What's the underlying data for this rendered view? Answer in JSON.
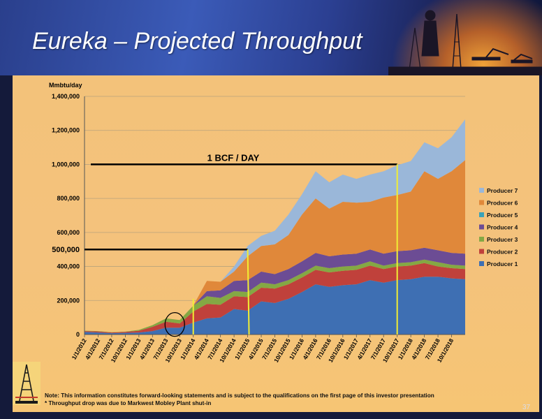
{
  "slide": {
    "title": "Eureka – Projected Throughput",
    "page_number": "37",
    "note_1": "Note:  This information constitutes forward-looking statements and is subject to the qualifications on the first page of this investor presentation",
    "note_2": "* Throughput drop was  due to Markwest Mobley Plant shut-in"
  },
  "colors": {
    "header_bg": "#2f4aa0",
    "panel_bg": "#f4c27c",
    "Producer 1": "#3e6fb3",
    "Producer 2": "#c0413b",
    "Producer 3": "#84a844",
    "Producer 4": "#6c4c94",
    "Producer 5": "#3aa2b9",
    "Producer 6": "#e0883a",
    "Producer 7": "#9ab7d9",
    "reference_lines": "#000000",
    "vertical_markers": "#f2ee34"
  },
  "chart_data": {
    "type": "area",
    "stacked": true,
    "ylabel": "Mmbtu/day",
    "ylim": [
      0,
      1400000
    ],
    "yticks": [
      0,
      200000,
      400000,
      600000,
      800000,
      1000000,
      1200000,
      1400000
    ],
    "ytick_labels": [
      "0",
      "200,000",
      "400,000",
      "600,000",
      "800,000",
      "1,000,000",
      "1,200,000",
      "1,400,000"
    ],
    "x_tick_labels": [
      "1/1/2012",
      "4/1/2012",
      "7/1/2012",
      "10/1/2012",
      "1/1/2013",
      "4/1/2013",
      "7/1/2013",
      "10/1/2013",
      "1/1/2014",
      "4/1/2014",
      "7/1/2014",
      "10/1/2014",
      "1/1/2015",
      "4/1/2015",
      "7/1/2015",
      "10/1/2015",
      "1/1/2016",
      "4/1/2016",
      "7/1/2016",
      "10/1/2016",
      "1/1/2017",
      "4/1/2017",
      "7/1/2017",
      "10/1/2017",
      "1/1/2018",
      "4/1/2018",
      "7/1/2018",
      "10/1/2018"
    ],
    "legend_position": "right",
    "grid": true,
    "x": [
      "1/1/2012",
      "4/1/2012",
      "7/1/2012",
      "10/1/2012",
      "1/1/2013",
      "4/1/2013",
      "7/1/2013",
      "10/1/2013",
      "1/1/2014",
      "4/1/2014",
      "7/1/2014",
      "10/1/2014",
      "1/1/2015",
      "4/1/2015",
      "7/1/2015",
      "10/1/2015",
      "1/1/2016",
      "4/1/2016",
      "7/1/2016",
      "10/1/2016",
      "1/1/2017",
      "4/1/2017",
      "7/1/2017",
      "10/1/2017",
      "1/1/2018",
      "4/1/2018",
      "7/1/2018",
      "10/1/2018",
      "12/1/2018"
    ],
    "series": [
      {
        "name": "Producer 1",
        "values": [
          15000,
          12000,
          8000,
          10000,
          12000,
          20000,
          40000,
          40000,
          70000,
          95000,
          100000,
          150000,
          140000,
          195000,
          185000,
          210000,
          250000,
          295000,
          280000,
          290000,
          295000,
          320000,
          305000,
          320000,
          325000,
          340000,
          340000,
          330000,
          325000
        ]
      },
      {
        "name": "Producer 2",
        "values": [
          5000,
          6000,
          4000,
          5000,
          10000,
          25000,
          35000,
          25000,
          65000,
          85000,
          75000,
          75000,
          80000,
          80000,
          85000,
          85000,
          85000,
          85000,
          85000,
          85000,
          85000,
          85000,
          80000,
          80000,
          80000,
          80000,
          60000,
          60000,
          60000
        ]
      },
      {
        "name": "Producer 3",
        "values": [
          2000,
          2000,
          1000,
          2000,
          5000,
          10000,
          20000,
          20000,
          35000,
          45000,
          40000,
          30000,
          30000,
          30000,
          25000,
          25000,
          25000,
          25000,
          25000,
          25000,
          25000,
          25000,
          20000,
          20000,
          20000,
          20000,
          25000,
          20000,
          20000
        ]
      },
      {
        "name": "Producer 4",
        "values": [
          0,
          0,
          0,
          0,
          0,
          0,
          0,
          0,
          0,
          30000,
          45000,
          60000,
          70000,
          65000,
          60000,
          65000,
          70000,
          75000,
          70000,
          70000,
          70000,
          70000,
          70000,
          70000,
          70000,
          70000,
          70000,
          70000,
          70000
        ]
      },
      {
        "name": "Producer 5",
        "values": [
          0,
          0,
          0,
          0,
          0,
          0,
          0,
          0,
          0,
          0,
          0,
          0,
          0,
          0,
          0,
          0,
          0,
          0,
          0,
          0,
          0,
          0,
          0,
          0,
          0,
          0,
          0,
          0,
          0
        ]
      },
      {
        "name": "Producer 6",
        "values": [
          0,
          0,
          0,
          0,
          0,
          0,
          0,
          0,
          0,
          60000,
          50000,
          55000,
          140000,
          150000,
          175000,
          200000,
          275000,
          320000,
          280000,
          310000,
          300000,
          280000,
          330000,
          330000,
          345000,
          450000,
          420000,
          480000,
          550000
        ]
      },
      {
        "name": "Producer 7",
        "values": [
          0,
          0,
          0,
          0,
          0,
          0,
          0,
          0,
          0,
          0,
          0,
          30000,
          60000,
          60000,
          80000,
          120000,
          120000,
          160000,
          155000,
          160000,
          140000,
          160000,
          155000,
          175000,
          180000,
          170000,
          180000,
          200000,
          240000
        ]
      }
    ],
    "annotations": [
      {
        "label": "1 BCF / DAY",
        "y": 1000000,
        "x_start": "1/1/2012",
        "x_end": "10/1/2017"
      },
      {
        "label": "500,000",
        "y": 500000,
        "x_start": "1/1/2012",
        "x_end": "1/1/2015"
      }
    ],
    "vertical_markers": [
      "1/1/2014",
      "1/1/2015",
      "10/1/2017"
    ],
    "highlight_circle": {
      "x": "10/1/2013",
      "y": 100000
    }
  }
}
